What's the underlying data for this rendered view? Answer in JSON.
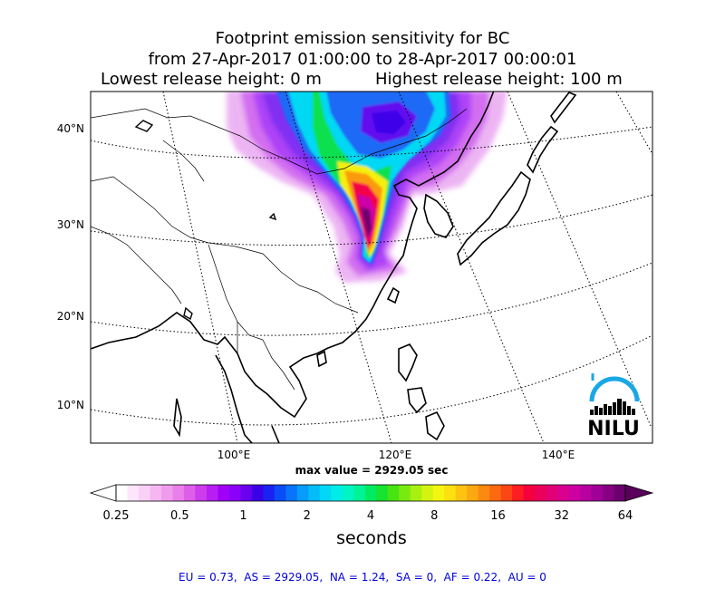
{
  "title": {
    "line1": "Footprint emission sensitivity for BC",
    "line2": "from 27-Apr-2017 01:00:00 to 28-Apr-2017 00:00:01",
    "lowest_release": "Lowest release height: 0 m",
    "highest_release": "Highest release height: 100 m"
  },
  "map": {
    "lat_labels": [
      "40°N",
      "30°N",
      "20°N",
      "10°N"
    ],
    "lon_labels": [
      "100°E",
      "120°E",
      "140°E"
    ],
    "max_value_label": "max value = 2929.05 sec",
    "logo_text": "NILU",
    "grid": "dotted"
  },
  "colorbar": {
    "tick_labels": [
      "0.25",
      "0.5",
      "1",
      "2",
      "4",
      "8",
      "16",
      "32",
      "64"
    ],
    "unit_label": "seconds",
    "scale": "log2",
    "range": [
      0.25,
      64
    ],
    "extend": "both",
    "colors": [
      "#ffffff",
      "#fde6fb",
      "#fbd0f7",
      "#f6b6f2",
      "#f09cee",
      "#e97fea",
      "#dd5ee8",
      "#cc3cec",
      "#b81ef2",
      "#a000f8",
      "#8a00f8",
      "#6a00f0",
      "#3c00e8",
      "#1a22f2",
      "#0a4cf8",
      "#0874fa",
      "#069cfb",
      "#04bcfa",
      "#02d8f6",
      "#00ece8",
      "#00f4c4",
      "#00f496",
      "#00ec60",
      "#18e230",
      "#48e412",
      "#78ea10",
      "#a8f010",
      "#d4f410",
      "#f4f610",
      "#fce010",
      "#fcc410",
      "#fca810",
      "#fc8a10",
      "#fc6a10",
      "#fc4616",
      "#fc1e22",
      "#f4003e",
      "#ea005a",
      "#e20076",
      "#da0090",
      "#cc00a0",
      "#b800a0",
      "#a00096",
      "#860082",
      "#6c006c"
    ],
    "over_color": "#58005a"
  },
  "chart_data": {
    "type": "heatmap",
    "title": "Footprint emission sensitivity for BC",
    "subtitle": "from 27-Apr-2017 01:00:00 to 28-Apr-2017 00:00:01",
    "colorbar_label": "seconds",
    "colorbar_scale": "log2",
    "colorbar_range": [
      0.25,
      64
    ],
    "max_value_sec": 2929.05,
    "lat_ticks": [
      40,
      30,
      20,
      10
    ],
    "lon_ticks": [
      100,
      120,
      140
    ],
    "regional_totals": {
      "EU": 0.73,
      "AS": 2929.05,
      "NA": 1.24,
      "SA": 0,
      "AF": 0.22,
      "AU": 0
    }
  },
  "totals_text": "EU = 0.73,  AS = 2929.05,  NA = 1.24,  SA = 0,  AF = 0.22,  AU = 0"
}
